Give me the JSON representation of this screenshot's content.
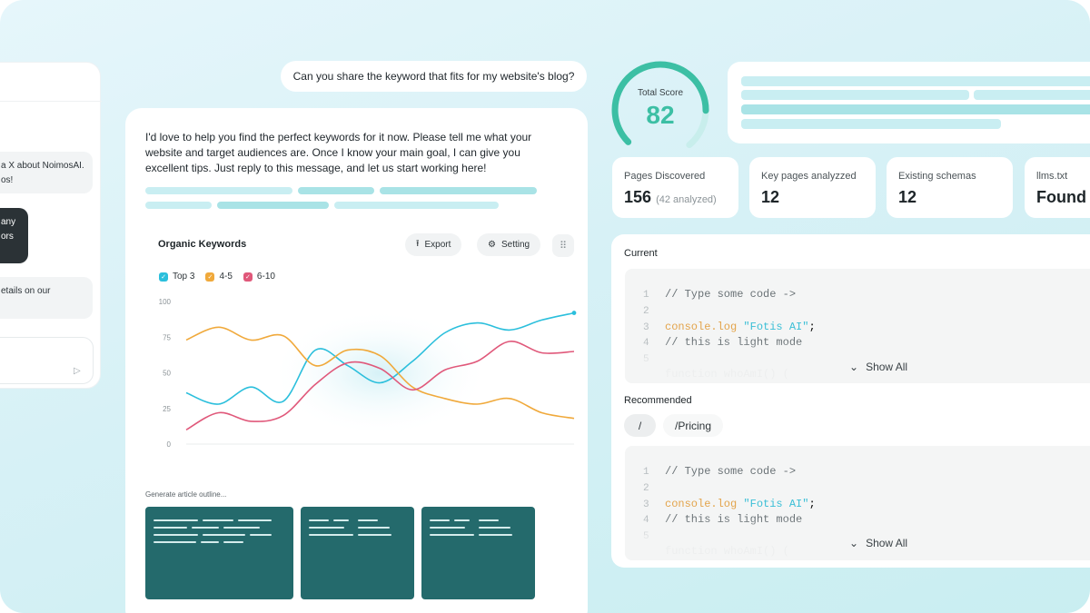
{
  "left_chat": {
    "messages": [
      {
        "lines": [
          "a X about NoimosAI.",
          "os!"
        ],
        "style": "light"
      },
      {
        "lines": [
          "any",
          "ors"
        ],
        "style": "dark"
      },
      {
        "lines": [
          "etails on our"
        ],
        "style": "light"
      }
    ],
    "send_icon": "send-icon"
  },
  "user_message": "Can you share the keyword that fits for my website's blog?",
  "assistant_message": "I'd love to help you find the perfect keywords for it now. Please tell me what your website and target audiences are. Once I know your main goal, I can give you excellent tips. Just reply to this message, and let us start working here!",
  "keywords_panel": {
    "title": "Organic Keywords",
    "export_label": "Export",
    "export_icon": "upload-icon",
    "setting_label": "Setting",
    "setting_icon": "gear-icon",
    "more_icon": "grid-dots-icon",
    "legend": [
      {
        "label": "Top 3",
        "color": "#2bbfdc"
      },
      {
        "label": "4-5",
        "color": "#f0a93b"
      },
      {
        "label": "6-10",
        "color": "#e0587a"
      }
    ]
  },
  "chart_data": {
    "type": "line",
    "title": "Organic Keywords",
    "xlabel": "",
    "ylabel": "",
    "ylim": [
      0,
      100
    ],
    "yticks": [
      0,
      25,
      50,
      75,
      100
    ],
    "x": [
      0,
      1,
      2,
      3,
      4,
      5,
      6,
      7,
      8,
      9,
      10,
      11,
      12
    ],
    "grid": false,
    "legend_position": "top-left",
    "series": [
      {
        "name": "Top 3",
        "color": "#2bbfdc",
        "values": [
          36,
          28,
          40,
          30,
          66,
          55,
          43,
          58,
          78,
          85,
          80,
          87,
          92
        ]
      },
      {
        "name": "4-5",
        "color": "#f0a93b",
        "values": [
          73,
          82,
          73,
          76,
          55,
          66,
          62,
          40,
          32,
          28,
          32,
          22,
          18
        ]
      },
      {
        "name": "6-10",
        "color": "#e0587a",
        "values": [
          10,
          22,
          16,
          20,
          42,
          57,
          53,
          38,
          52,
          58,
          72,
          64,
          65
        ]
      }
    ]
  },
  "outline": {
    "label": "Generate article outline..."
  },
  "score": {
    "label": "Total Score",
    "value": "82",
    "fraction": 0.82,
    "color": "#3cbfa4"
  },
  "stats": [
    {
      "label": "Pages Discovered",
      "value": "156",
      "sub": "(42 analyzed)"
    },
    {
      "label": "Key pages analyzzed",
      "value": "12",
      "sub": ""
    },
    {
      "label": "Existing schemas",
      "value": "12",
      "sub": ""
    },
    {
      "label": "llms.txt",
      "value": "Found",
      "sub": ""
    }
  ],
  "current": {
    "label": "Current",
    "code": {
      "comment1": "// Type some code ->",
      "fn": "console.log",
      "str": "\"Fotis AI\"",
      "semi": ";",
      "comment2": "// this is light mode"
    },
    "show_all": "Show All"
  },
  "recommended": {
    "label": "Recommended",
    "tabs": [
      "/",
      "/Pricing"
    ],
    "code": {
      "comment1": "// Type some code ->",
      "fn": "console.log",
      "str": "\"Fotis AI\"",
      "semi": ";",
      "comment2": "// this is light mode"
    },
    "show_all": "Show All"
  }
}
